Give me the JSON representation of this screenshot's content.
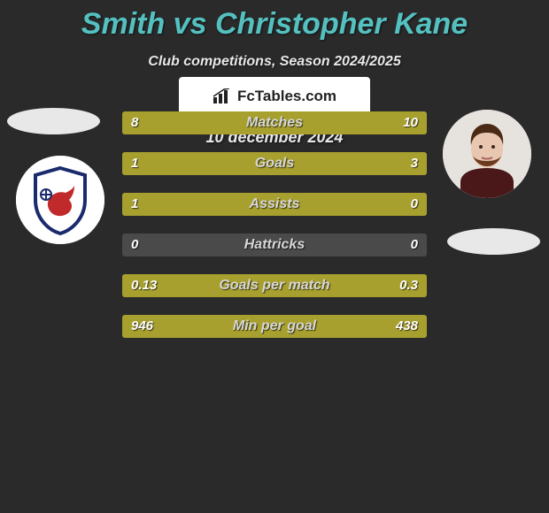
{
  "title": "Smith vs Christopher Kane",
  "subtitle": "Club competitions, Season 2024/2025",
  "date": "10 december 2024",
  "badge": "FcTables.com",
  "colors": {
    "left_bar": "#a8a02e",
    "right_bar": "#a8a02e",
    "track": "#4a4a4a",
    "background": "#2a2a2a",
    "title_color": "#54c0c0"
  },
  "rows": [
    {
      "label": "Matches",
      "left": "8",
      "right": "10",
      "left_pct": 44,
      "right_pct": 56
    },
    {
      "label": "Goals",
      "left": "1",
      "right": "3",
      "left_pct": 25,
      "right_pct": 75
    },
    {
      "label": "Assists",
      "left": "1",
      "right": "0",
      "left_pct": 100,
      "right_pct": 0
    },
    {
      "label": "Hattricks",
      "left": "0",
      "right": "0",
      "left_pct": 0,
      "right_pct": 0
    },
    {
      "label": "Goals per match",
      "left": "0.13",
      "right": "0.3",
      "left_pct": 30,
      "right_pct": 70
    },
    {
      "label": "Min per goal",
      "left": "946",
      "right": "438",
      "left_pct": 32,
      "right_pct": 68
    }
  ]
}
